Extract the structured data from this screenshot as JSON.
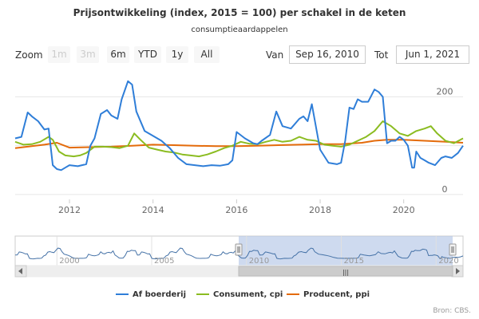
{
  "title": "Prijsontwikkeling (index, 2015 = 100) per schakel in de keten",
  "subtitle": "consumptieaardappelen",
  "range_selector": {
    "zoom_label": "Zoom",
    "buttons": [
      "1m",
      "3m",
      "6m",
      "YTD",
      "1y",
      "All"
    ],
    "from_label": "Van",
    "from_value": "Sep 16, 2010",
    "to_label": "Tot",
    "to_value": "Jun 1, 2021"
  },
  "navigator": {
    "ticks": [
      "2000",
      "2005",
      "2010",
      "2015",
      "2020"
    ],
    "handle_glyph": "|||"
  },
  "credits": "Bron: CBS.",
  "chart_data": {
    "type": "line",
    "title": "Prijsontwikkeling (index, 2015 = 100) per schakel in de keten",
    "subtitle": "consumptieaardappelen",
    "xlim": [
      2010.7,
      2021.42
    ],
    "ylim": [
      -10,
      235
    ],
    "y_ticks": [
      0,
      100,
      200
    ],
    "y_tick_labels": [
      "0",
      "",
      "200"
    ],
    "x_tick_labels": [
      "2012",
      "2014",
      "2016",
      "2018",
      "2020"
    ],
    "x_tick_values": [
      2012,
      2014,
      2016,
      2018,
      2020
    ],
    "grid": true,
    "legend_position": "bottom-center",
    "series": [
      {
        "name": "Af boerderij",
        "color": "#2f7ed8",
        "x": [
          2010.7,
          2010.85,
          2011.0,
          2011.1,
          2011.25,
          2011.4,
          2011.5,
          2011.6,
          2011.7,
          2011.8,
          2011.9,
          2012.0,
          2012.2,
          2012.4,
          2012.5,
          2012.6,
          2012.75,
          2012.9,
          2013.0,
          2013.15,
          2013.25,
          2013.4,
          2013.5,
          2013.6,
          2013.8,
          2014.0,
          2014.2,
          2014.4,
          2014.6,
          2014.8,
          2015.0,
          2015.2,
          2015.4,
          2015.6,
          2015.8,
          2015.9,
          2016.0,
          2016.2,
          2016.4,
          2016.5,
          2016.6,
          2016.8,
          2016.95,
          2017.1,
          2017.3,
          2017.5,
          2017.6,
          2017.7,
          2017.8,
          2017.95,
          2018.0,
          2018.2,
          2018.4,
          2018.5,
          2018.6,
          2018.7,
          2018.8,
          2018.9,
          2019.0,
          2019.15,
          2019.3,
          2019.4,
          2019.5,
          2019.6,
          2019.7,
          2019.8,
          2019.9,
          2020.0,
          2020.1,
          2020.2,
          2020.25,
          2020.3,
          2020.4,
          2020.5,
          2020.6,
          2020.75,
          2020.9,
          2021.0,
          2021.15,
          2021.3,
          2021.42
        ],
        "values": [
          115,
          118,
          168,
          160,
          150,
          133,
          135,
          60,
          52,
          50,
          55,
          60,
          58,
          62,
          100,
          115,
          165,
          173,
          162,
          155,
          195,
          232,
          225,
          170,
          130,
          120,
          110,
          95,
          75,
          62,
          60,
          58,
          60,
          59,
          62,
          70,
          128,
          115,
          105,
          103,
          110,
          122,
          170,
          140,
          135,
          155,
          160,
          150,
          185,
          115,
          92,
          65,
          62,
          65,
          110,
          178,
          175,
          195,
          190,
          190,
          215,
          210,
          200,
          105,
          110,
          110,
          118,
          112,
          100,
          55,
          55,
          88,
          75,
          70,
          65,
          60,
          75,
          78,
          75,
          85,
          100
        ]
      },
      {
        "name": "Consument, cpi",
        "color": "#8bbc21",
        "x": [
          2010.7,
          2010.9,
          2011.1,
          2011.3,
          2011.5,
          2011.6,
          2011.75,
          2011.9,
          2012.1,
          2012.25,
          2012.4,
          2012.6,
          2012.8,
          2013.0,
          2013.2,
          2013.4,
          2013.55,
          2013.7,
          2013.9,
          2014.1,
          2014.3,
          2014.5,
          2014.7,
          2014.9,
          2015.1,
          2015.3,
          2015.5,
          2015.7,
          2015.9,
          2016.1,
          2016.3,
          2016.5,
          2016.7,
          2016.9,
          2017.1,
          2017.3,
          2017.5,
          2017.7,
          2017.9,
          2018.1,
          2018.3,
          2018.5,
          2018.7,
          2018.9,
          2019.1,
          2019.3,
          2019.5,
          2019.7,
          2019.9,
          2020.1,
          2020.3,
          2020.5,
          2020.65,
          2020.8,
          2021.0,
          2021.2,
          2021.42
        ],
        "values": [
          108,
          102,
          103,
          108,
          118,
          112,
          88,
          80,
          78,
          80,
          85,
          98,
          98,
          97,
          95,
          100,
          125,
          112,
          96,
          92,
          88,
          86,
          82,
          80,
          78,
          82,
          88,
          95,
          100,
          108,
          104,
          103,
          108,
          112,
          108,
          110,
          118,
          112,
          110,
          102,
          100,
          98,
          102,
          110,
          118,
          130,
          150,
          140,
          125,
          120,
          130,
          135,
          140,
          125,
          110,
          105,
          115
        ]
      },
      {
        "name": "Producent, ppi",
        "color": "#e46b0b",
        "x": [
          2010.7,
          2011.0,
          2011.4,
          2011.7,
          2012.0,
          2012.5,
          2013.0,
          2013.5,
          2014.0,
          2014.5,
          2015.0,
          2015.5,
          2016.0,
          2016.5,
          2017.0,
          2017.5,
          2018.0,
          2018.5,
          2019.0,
          2019.3,
          2019.6,
          2020.0,
          2020.5,
          2021.0,
          2021.42
        ],
        "values": [
          95,
          98,
          102,
          106,
          96,
          97,
          98,
          100,
          102,
          101,
          100,
          99,
          99,
          100,
          101,
          102,
          103,
          103,
          106,
          110,
          112,
          112,
          110,
          108,
          106
        ]
      }
    ]
  }
}
